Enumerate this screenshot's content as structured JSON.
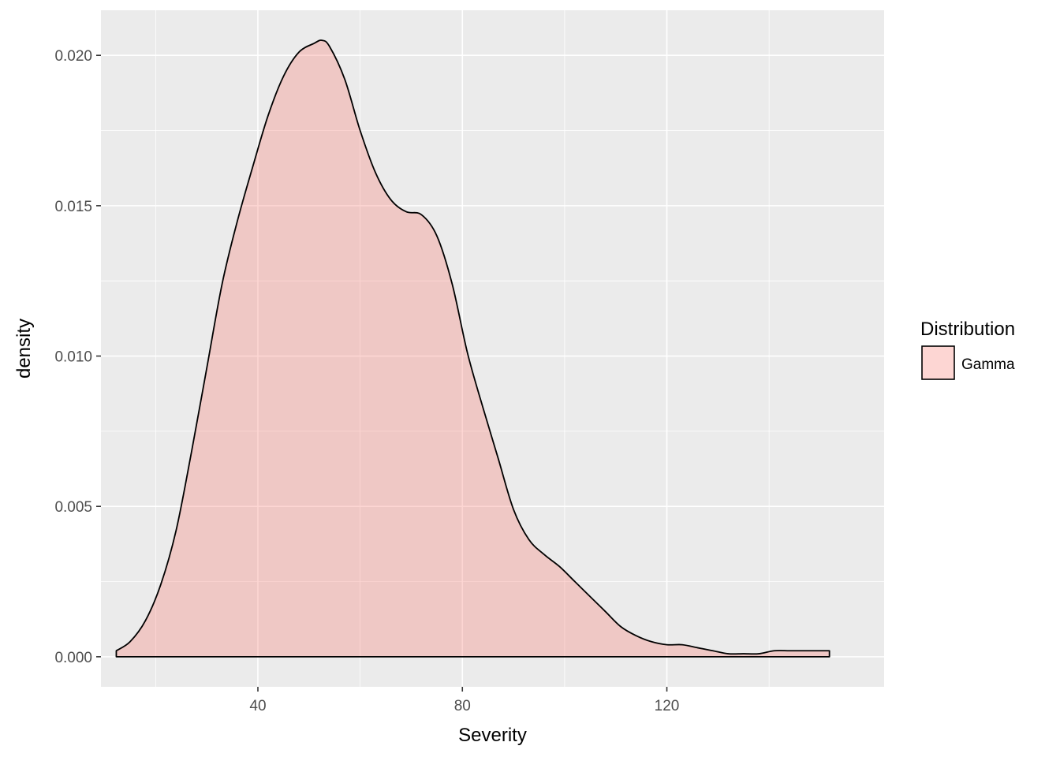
{
  "chart_data": {
    "type": "area",
    "title": "",
    "xlabel": "Severity",
    "ylabel": "density",
    "xlim": [
      9.3,
      162.5
    ],
    "ylim": [
      -0.001,
      0.0215
    ],
    "x_ticks": [
      40,
      80,
      120
    ],
    "x_tick_labels": [
      "40",
      "80",
      "120"
    ],
    "y_ticks": [
      0.0,
      0.005,
      0.01,
      0.015,
      0.02
    ],
    "y_tick_labels": [
      "0.000",
      "0.005",
      "0.010",
      "0.015",
      "0.020"
    ],
    "grid": true,
    "legend": {
      "title": "Distribution",
      "position": "right"
    },
    "series": [
      {
        "name": "Gamma",
        "fill": "#f8766d",
        "fill_opacity": 0.3,
        "line_color": "#000000",
        "x": [
          12.3,
          15,
          18,
          21,
          24,
          27,
          30,
          33,
          36,
          39,
          42,
          45,
          48,
          51,
          52.5,
          54,
          57,
          60,
          63,
          66,
          69,
          72,
          75,
          78,
          81,
          84,
          87,
          90,
          93,
          96,
          99,
          102,
          105,
          108,
          111,
          114,
          117,
          120,
          123,
          126,
          129,
          132,
          135,
          138,
          141,
          144,
          147,
          151.8
        ],
        "y": [
          0.0002,
          0.0005,
          0.0012,
          0.0024,
          0.0042,
          0.0068,
          0.0096,
          0.0124,
          0.0145,
          0.0163,
          0.018,
          0.0193,
          0.0201,
          0.0204,
          0.0205,
          0.0203,
          0.0192,
          0.0175,
          0.0161,
          0.0152,
          0.0148,
          0.0147,
          0.014,
          0.0124,
          0.0101,
          0.0083,
          0.0066,
          0.0049,
          0.0039,
          0.0034,
          0.003,
          0.0025,
          0.002,
          0.0015,
          0.001,
          0.0007,
          0.0005,
          0.0004,
          0.0004,
          0.0003,
          0.0002,
          0.0001,
          0.0001,
          0.0001,
          0.0002,
          0.0002,
          0.0002,
          0.0002
        ]
      }
    ]
  }
}
